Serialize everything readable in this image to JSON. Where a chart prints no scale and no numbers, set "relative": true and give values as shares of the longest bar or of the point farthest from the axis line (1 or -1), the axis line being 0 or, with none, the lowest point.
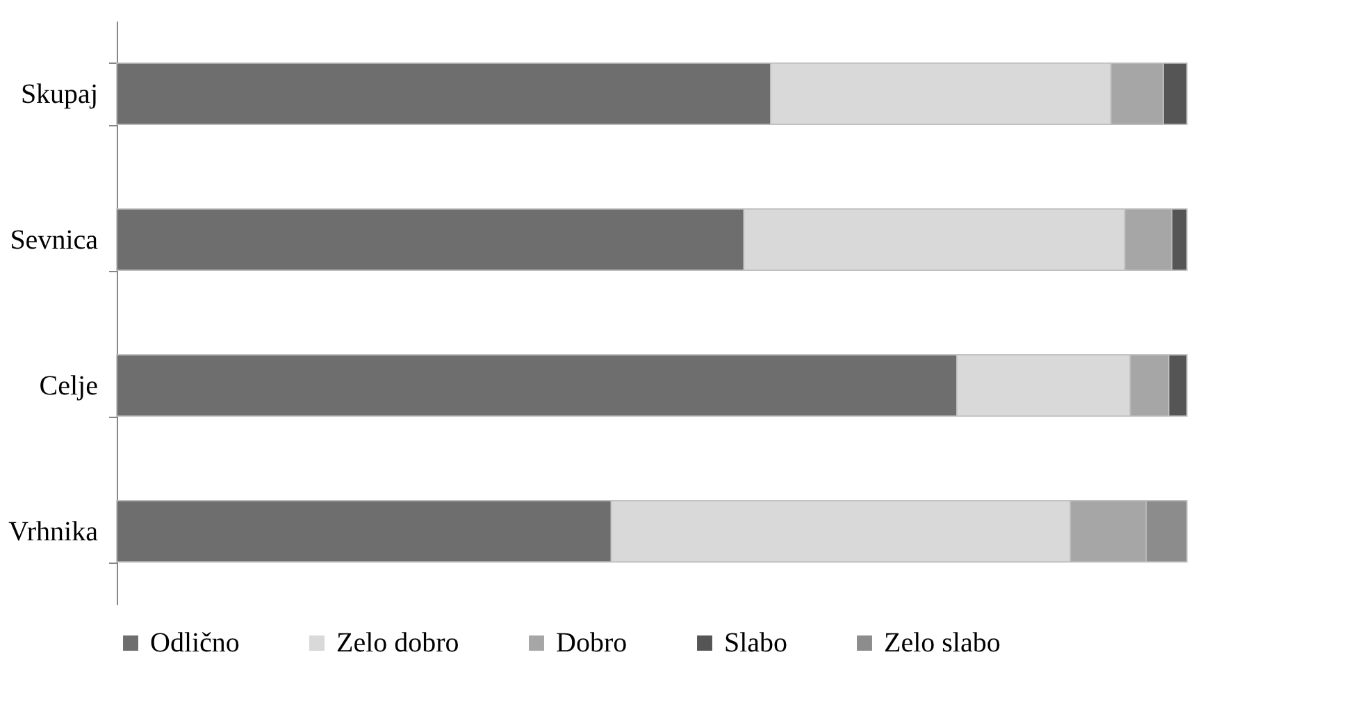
{
  "chart_data": {
    "type": "bar",
    "orientation": "horizontal",
    "stacked": true,
    "relative": true,
    "legend": "bottom",
    "categories": [
      "Skupaj",
      "Sevnica",
      "Celje",
      "Vrhnika"
    ],
    "series": [
      {
        "name": "Odlično",
        "color": "#6e6e6e",
        "values": [
          0.611,
          0.586,
          0.785,
          0.462
        ]
      },
      {
        "name": "Zelo dobro",
        "color": "#d9d9d9",
        "values": [
          0.318,
          0.356,
          0.162,
          0.429
        ]
      },
      {
        "name": "Dobro",
        "color": "#a6a6a6",
        "values": [
          0.049,
          0.044,
          0.036,
          0.071
        ]
      },
      {
        "name": "Slabo",
        "color": "#555555",
        "values": [
          0.022,
          0.014,
          0.017,
          null
        ]
      },
      {
        "name": "Zelo slabo",
        "color": "#8c8c8c",
        "values": [
          null,
          null,
          null,
          0.038
        ]
      }
    ]
  }
}
